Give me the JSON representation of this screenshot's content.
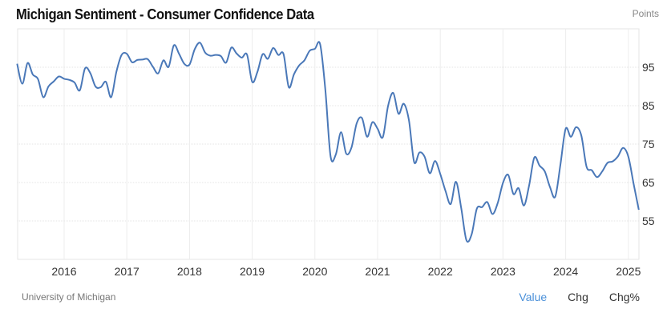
{
  "header": {
    "title": "Michigan Sentiment - Consumer Confidence Data",
    "unit": "Points"
  },
  "footer": {
    "source": "University of Michigan",
    "tabs": [
      "Value",
      "Chg",
      "Chg%"
    ],
    "active_tab": "Value"
  },
  "colors": {
    "line": "#4a78b8",
    "active_tab": "#4a90d9"
  },
  "chart_data": {
    "type": "line",
    "title": "Michigan Sentiment - Consumer Confidence Data",
    "ylabel": "Points",
    "ylim": [
      45,
      105
    ],
    "yticks": [
      55,
      65,
      75,
      85,
      95
    ],
    "xticks": [
      "2016",
      "2017",
      "2018",
      "2019",
      "2020",
      "2021",
      "2022",
      "2023",
      "2024",
      "2025"
    ],
    "y_axis_position": "right",
    "grid": true,
    "start": "2015-04",
    "frequency": "monthly",
    "values": [
      95.9,
      90.7,
      96.1,
      93.1,
      91.9,
      87.2,
      90.0,
      91.3,
      92.6,
      92.0,
      91.7,
      91.0,
      89.0,
      94.7,
      93.5,
      90.0,
      89.8,
      91.2,
      87.2,
      93.8,
      98.2,
      98.5,
      96.3,
      96.9,
      97.0,
      97.1,
      95.1,
      93.4,
      96.8,
      95.1,
      100.7,
      98.5,
      95.9,
      95.7,
      99.7,
      101.4,
      98.8,
      98.0,
      98.2,
      97.9,
      96.2,
      100.1,
      98.6,
      97.5,
      98.3,
      91.2,
      93.8,
      98.4,
      97.2,
      100.0,
      98.2,
      98.4,
      89.8,
      93.2,
      95.5,
      96.8,
      99.3,
      99.8,
      101.0,
      89.1,
      71.8,
      72.3,
      78.1,
      72.5,
      74.1,
      80.4,
      81.8,
      76.9,
      80.7,
      79.0,
      76.8,
      84.9,
      88.3,
      82.9,
      85.5,
      81.2,
      70.3,
      72.8,
      71.7,
      67.4,
      70.6,
      67.2,
      62.8,
      59.4,
      65.2,
      58.4,
      50.0,
      51.5,
      58.2,
      58.6,
      59.9,
      56.8,
      59.7,
      64.9,
      67.0,
      62.0,
      63.5,
      59.0,
      64.2,
      71.5,
      69.4,
      67.9,
      63.8,
      61.3,
      69.7,
      79.0,
      76.9,
      79.4,
      77.2,
      69.1,
      68.2,
      66.4,
      67.9,
      70.1,
      70.5,
      71.8,
      74.0,
      71.7,
      64.7,
      57.9
    ]
  }
}
